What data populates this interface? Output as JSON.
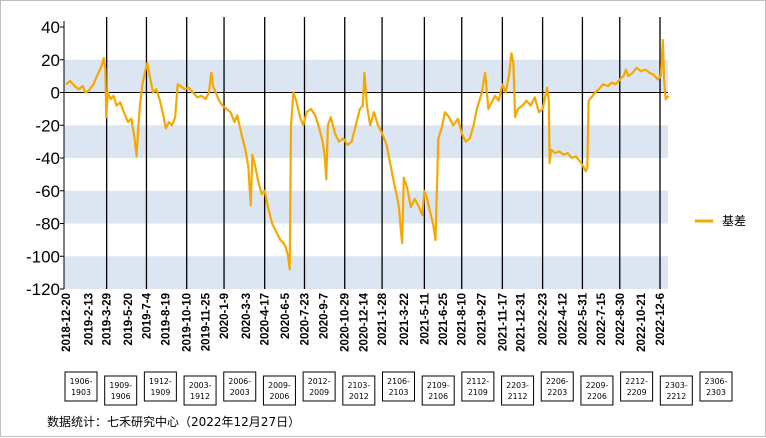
{
  "chart_data": {
    "type": "line",
    "title": "",
    "xlabel": "",
    "ylabel": "",
    "ylim": [
      -120,
      40
    ],
    "yticks": [
      40,
      20,
      0,
      -20,
      -40,
      -60,
      -80,
      -100,
      -120
    ],
    "shaded_bands": [
      [
        20,
        0
      ],
      [
        -20,
        -40
      ],
      [
        -60,
        -80
      ],
      [
        -100,
        -120
      ]
    ],
    "band_color": "#dce6f2",
    "line_color": "#f5a800",
    "grid": false,
    "legend_position": "right",
    "x_dates": [
      "2018-12-20",
      "2019-2-13",
      "2019-3-29",
      "2019-5-20",
      "2019-7-4",
      "2019-8-19",
      "2019-10-10",
      "2019-11-25",
      "2020-1-9",
      "2020-3-3",
      "2020-4-17",
      "2020-6-5",
      "2020-7-23",
      "2020-9-7",
      "2020-10-29",
      "2020-12-14",
      "2021-1-28",
      "2021-3-22",
      "2021-5-11",
      "2021-6-25",
      "2021-8-10",
      "2021-9-27",
      "2021-11-17",
      "2021-12-31",
      "2022-2-23",
      "2022-4-12",
      "2022-5-31",
      "2022-7-15",
      "2022-8-30",
      "2022-10-21",
      "2022-12-6"
    ],
    "roll_periods": [
      "1906-1903",
      "1909-1906",
      "1912-1909",
      "2003-1912",
      "2006-2003",
      "2009-2006",
      "2012-2009",
      "2103-2012",
      "2106-2103",
      "2109-2106",
      "2112-2109",
      "2203-2112",
      "2206-2203",
      "2209-2206",
      "2212-2209",
      "2303-2212",
      "2306-2303"
    ],
    "series": [
      {
        "name": "基差",
        "points": [
          [
            "2018-12-20",
            5
          ],
          [
            "2018-12-30",
            7
          ],
          [
            "2019-1-10",
            4
          ],
          [
            "2019-1-20",
            2
          ],
          [
            "2019-1-30",
            4
          ],
          [
            "2019-2-5",
            0
          ],
          [
            "2019-2-13",
            1
          ],
          [
            "2019-2-25",
            5
          ],
          [
            "2019-3-5",
            10
          ],
          [
            "2019-3-15",
            15
          ],
          [
            "2019-3-22",
            21
          ],
          [
            "2019-3-26",
            14
          ],
          [
            "2019-3-28",
            -15
          ],
          [
            "2019-4-1",
            0
          ],
          [
            "2019-4-8",
            -4
          ],
          [
            "2019-4-15",
            -2
          ],
          [
            "2019-4-22",
            -8
          ],
          [
            "2019-5-1",
            -6
          ],
          [
            "2019-5-10",
            -12
          ],
          [
            "2019-5-20",
            -18
          ],
          [
            "2019-5-28",
            -16
          ],
          [
            "2019-6-5",
            -28
          ],
          [
            "2019-6-10",
            -39
          ],
          [
            "2019-6-14",
            -22
          ],
          [
            "2019-6-18",
            -8
          ],
          [
            "2019-6-24",
            5
          ],
          [
            "2019-6-30",
            12
          ],
          [
            "2019-7-6",
            18
          ],
          [
            "2019-7-12",
            10
          ],
          [
            "2019-7-20",
            0
          ],
          [
            "2019-7-28",
            2
          ],
          [
            "2019-8-6",
            -5
          ],
          [
            "2019-8-14",
            -14
          ],
          [
            "2019-8-20",
            -22
          ],
          [
            "2019-8-28",
            -18
          ],
          [
            "2019-9-4",
            -20
          ],
          [
            "2019-9-12",
            -15
          ],
          [
            "2019-9-18",
            5
          ],
          [
            "2019-9-25",
            4
          ],
          [
            "2019-10-5",
            2
          ],
          [
            "2019-10-15",
            3
          ],
          [
            "2019-10-25",
            0
          ],
          [
            "2019-11-5",
            -3
          ],
          [
            "2019-11-15",
            -2
          ],
          [
            "2019-11-25",
            -4
          ],
          [
            "2019-12-3",
            0
          ],
          [
            "2019-12-9",
            12
          ],
          [
            "2019-12-13",
            4
          ],
          [
            "2019-12-20",
            0
          ],
          [
            "2019-12-28",
            -5
          ],
          [
            "2020-1-5",
            -8
          ],
          [
            "2020-1-15",
            -10
          ],
          [
            "2020-1-25",
            -12
          ],
          [
            "2020-2-3",
            -18
          ],
          [
            "2020-2-10",
            -14
          ],
          [
            "2020-2-20",
            -25
          ],
          [
            "2020-3-1",
            -35
          ],
          [
            "2020-3-8",
            -45
          ],
          [
            "2020-3-14",
            -69
          ],
          [
            "2020-3-18",
            -38
          ],
          [
            "2020-3-25",
            -45
          ],
          [
            "2020-4-2",
            -55
          ],
          [
            "2020-4-10",
            -62
          ],
          [
            "2020-4-17",
            -60
          ],
          [
            "2020-4-25",
            -70
          ],
          [
            "2020-5-5",
            -80
          ],
          [
            "2020-5-15",
            -85
          ],
          [
            "2020-5-25",
            -90
          ],
          [
            "2020-6-2",
            -92
          ],
          [
            "2020-6-8",
            -95
          ],
          [
            "2020-6-13",
            -100
          ],
          [
            "2020-6-17",
            -108
          ],
          [
            "2020-6-20",
            -20
          ],
          [
            "2020-6-26",
            0
          ],
          [
            "2020-7-3",
            -5
          ],
          [
            "2020-7-12",
            -15
          ],
          [
            "2020-7-20",
            -20
          ],
          [
            "2020-7-28",
            -12
          ],
          [
            "2020-8-8",
            -10
          ],
          [
            "2020-8-18",
            -14
          ],
          [
            "2020-8-28",
            -22
          ],
          [
            "2020-9-5",
            -30
          ],
          [
            "2020-9-10",
            -38
          ],
          [
            "2020-9-14",
            -53
          ],
          [
            "2020-9-18",
            -20
          ],
          [
            "2020-9-25",
            -15
          ],
          [
            "2020-10-5",
            -25
          ],
          [
            "2020-10-15",
            -30
          ],
          [
            "2020-10-25",
            -28
          ],
          [
            "2020-11-5",
            -32
          ],
          [
            "2020-11-15",
            -30
          ],
          [
            "2020-11-25",
            -20
          ],
          [
            "2020-12-5",
            -10
          ],
          [
            "2020-12-12",
            -8
          ],
          [
            "2020-12-16",
            12
          ],
          [
            "2020-12-22",
            -8
          ],
          [
            "2020-12-30",
            -20
          ],
          [
            "2021-1-8",
            -12
          ],
          [
            "2021-1-18",
            -20
          ],
          [
            "2021-1-28",
            -25
          ],
          [
            "2021-2-8",
            -32
          ],
          [
            "2021-2-18",
            -45
          ],
          [
            "2021-2-26",
            -55
          ],
          [
            "2021-3-4",
            -62
          ],
          [
            "2021-3-10",
            -70
          ],
          [
            "2021-3-15",
            -85
          ],
          [
            "2021-3-18",
            -92
          ],
          [
            "2021-3-22",
            -52
          ],
          [
            "2021-3-30",
            -58
          ],
          [
            "2021-4-8",
            -70
          ],
          [
            "2021-4-18",
            -65
          ],
          [
            "2021-4-28",
            -70
          ],
          [
            "2021-5-6",
            -75
          ],
          [
            "2021-5-11",
            -60
          ],
          [
            "2021-5-18",
            -65
          ],
          [
            "2021-5-24",
            -72
          ],
          [
            "2021-6-1",
            -80
          ],
          [
            "2021-6-7",
            -90
          ],
          [
            "2021-6-14",
            -28
          ],
          [
            "2021-6-22",
            -22
          ],
          [
            "2021-6-30",
            -12
          ],
          [
            "2021-7-10",
            -15
          ],
          [
            "2021-7-20",
            -20
          ],
          [
            "2021-8-1",
            -16
          ],
          [
            "2021-8-10",
            -25
          ],
          [
            "2021-8-20",
            -30
          ],
          [
            "2021-8-30",
            -28
          ],
          [
            "2021-9-8",
            -20
          ],
          [
            "2021-9-16",
            -10
          ],
          [
            "2021-9-22",
            -5
          ],
          [
            "2021-9-28",
            0
          ],
          [
            "2021-10-6",
            12
          ],
          [
            "2021-10-14",
            -10
          ],
          [
            "2021-10-22",
            -6
          ],
          [
            "2021-10-30",
            -2
          ],
          [
            "2021-11-8",
            -5
          ],
          [
            "2021-11-17",
            5
          ],
          [
            "2021-11-25",
            0
          ],
          [
            "2021-12-3",
            10
          ],
          [
            "2021-12-9",
            24
          ],
          [
            "2021-12-14",
            18
          ],
          [
            "2021-12-18",
            -15
          ],
          [
            "2021-12-25",
            -10
          ],
          [
            "2022-1-5",
            -8
          ],
          [
            "2022-1-15",
            -5
          ],
          [
            "2022-1-25",
            -8
          ],
          [
            "2022-2-4",
            -3
          ],
          [
            "2022-2-14",
            -12
          ],
          [
            "2022-2-23",
            -10
          ],
          [
            "2022-3-1",
            -3
          ],
          [
            "2022-3-6",
            3
          ],
          [
            "2022-3-10",
            -5
          ],
          [
            "2022-3-12",
            -43
          ],
          [
            "2022-3-16",
            -35
          ],
          [
            "2022-3-25",
            -37
          ],
          [
            "2022-4-5",
            -36
          ],
          [
            "2022-4-15",
            -38
          ],
          [
            "2022-4-25",
            -37
          ],
          [
            "2022-5-5",
            -40
          ],
          [
            "2022-5-15",
            -39
          ],
          [
            "2022-5-25",
            -42
          ],
          [
            "2022-6-2",
            -45
          ],
          [
            "2022-6-8",
            -48
          ],
          [
            "2022-6-12",
            -46
          ],
          [
            "2022-6-15",
            -5
          ],
          [
            "2022-6-22",
            -3
          ],
          [
            "2022-7-1",
            0
          ],
          [
            "2022-7-10",
            2
          ],
          [
            "2022-7-20",
            5
          ],
          [
            "2022-8-1",
            4
          ],
          [
            "2022-8-10",
            6
          ],
          [
            "2022-8-20",
            5
          ],
          [
            "2022-8-30",
            8
          ],
          [
            "2022-9-8",
            10
          ],
          [
            "2022-9-14",
            14
          ],
          [
            "2022-9-20",
            10
          ],
          [
            "2022-9-30",
            12
          ],
          [
            "2022-10-10",
            15
          ],
          [
            "2022-10-21",
            13
          ],
          [
            "2022-11-1",
            14
          ],
          [
            "2022-11-10",
            12
          ],
          [
            "2022-11-20",
            11
          ],
          [
            "2022-12-1",
            8
          ],
          [
            "2022-12-8",
            10
          ],
          [
            "2022-12-13",
            32
          ],
          [
            "2022-12-16",
            8
          ],
          [
            "2022-12-20",
            -4
          ],
          [
            "2022-12-27",
            -2
          ]
        ]
      }
    ]
  },
  "source_note": "数据统计：七禾研究中心（2022年12月27日）"
}
